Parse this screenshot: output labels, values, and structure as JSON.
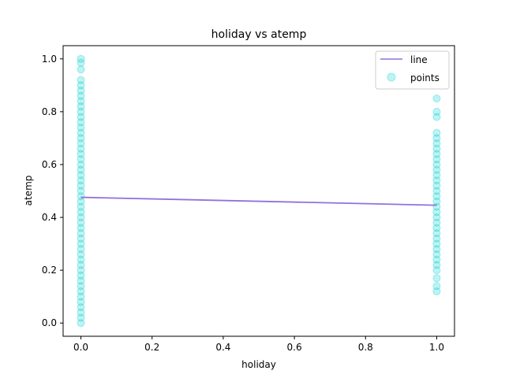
{
  "colors": {
    "line": "#9370db",
    "points": "#00ced1"
  },
  "chart_data": {
    "type": "scatter",
    "title": "holiday vs atemp",
    "xlabel": "holiday",
    "ylabel": "atemp",
    "xlim": [
      -0.05,
      1.05
    ],
    "ylim": [
      -0.05,
      1.05
    ],
    "xticks": [
      "0.0",
      "0.2",
      "0.4",
      "0.6",
      "0.8",
      "1.0"
    ],
    "yticks": [
      "0.0",
      "0.2",
      "0.4",
      "0.6",
      "0.8",
      "1.0"
    ],
    "grid": false,
    "legend_position": "top-right",
    "legend": [
      "line",
      "points"
    ],
    "series": [
      {
        "name": "line",
        "kind": "line",
        "x": [
          0,
          1
        ],
        "y": [
          0.476,
          0.446
        ]
      },
      {
        "name": "points",
        "kind": "scatter",
        "alpha": 0.25,
        "points": [
          [
            0,
            0.0
          ],
          [
            0,
            0.02
          ],
          [
            0,
            0.04
          ],
          [
            0,
            0.06
          ],
          [
            0,
            0.08
          ],
          [
            0,
            0.1
          ],
          [
            0,
            0.12
          ],
          [
            0,
            0.14
          ],
          [
            0,
            0.16
          ],
          [
            0,
            0.18
          ],
          [
            0,
            0.2
          ],
          [
            0,
            0.22
          ],
          [
            0,
            0.24
          ],
          [
            0,
            0.26
          ],
          [
            0,
            0.28
          ],
          [
            0,
            0.3
          ],
          [
            0,
            0.32
          ],
          [
            0,
            0.34
          ],
          [
            0,
            0.36
          ],
          [
            0,
            0.38
          ],
          [
            0,
            0.4
          ],
          [
            0,
            0.42
          ],
          [
            0,
            0.44
          ],
          [
            0,
            0.46
          ],
          [
            0,
            0.48
          ],
          [
            0,
            0.5
          ],
          [
            0,
            0.52
          ],
          [
            0,
            0.54
          ],
          [
            0,
            0.56
          ],
          [
            0,
            0.58
          ],
          [
            0,
            0.6
          ],
          [
            0,
            0.62
          ],
          [
            0,
            0.64
          ],
          [
            0,
            0.66
          ],
          [
            0,
            0.68
          ],
          [
            0,
            0.7
          ],
          [
            0,
            0.72
          ],
          [
            0,
            0.74
          ],
          [
            0,
            0.76
          ],
          [
            0,
            0.78
          ],
          [
            0,
            0.8
          ],
          [
            0,
            0.82
          ],
          [
            0,
            0.84
          ],
          [
            0,
            0.86
          ],
          [
            0,
            0.88
          ],
          [
            0,
            0.9
          ],
          [
            0,
            0.92
          ],
          [
            0,
            0.96
          ],
          [
            0,
            0.985
          ],
          [
            0,
            1.0
          ],
          [
            1,
            0.12
          ],
          [
            1,
            0.14
          ],
          [
            1,
            0.17
          ],
          [
            1,
            0.2
          ],
          [
            1,
            0.22
          ],
          [
            1,
            0.24
          ],
          [
            1,
            0.26
          ],
          [
            1,
            0.28
          ],
          [
            1,
            0.3
          ],
          [
            1,
            0.32
          ],
          [
            1,
            0.34
          ],
          [
            1,
            0.36
          ],
          [
            1,
            0.38
          ],
          [
            1,
            0.4
          ],
          [
            1,
            0.42
          ],
          [
            1,
            0.44
          ],
          [
            1,
            0.46
          ],
          [
            1,
            0.48
          ],
          [
            1,
            0.5
          ],
          [
            1,
            0.52
          ],
          [
            1,
            0.54
          ],
          [
            1,
            0.56
          ],
          [
            1,
            0.58
          ],
          [
            1,
            0.6
          ],
          [
            1,
            0.62
          ],
          [
            1,
            0.64
          ],
          [
            1,
            0.66
          ],
          [
            1,
            0.68
          ],
          [
            1,
            0.7
          ],
          [
            1,
            0.72
          ],
          [
            1,
            0.78
          ],
          [
            1,
            0.8
          ],
          [
            1,
            0.85
          ]
        ]
      }
    ]
  }
}
